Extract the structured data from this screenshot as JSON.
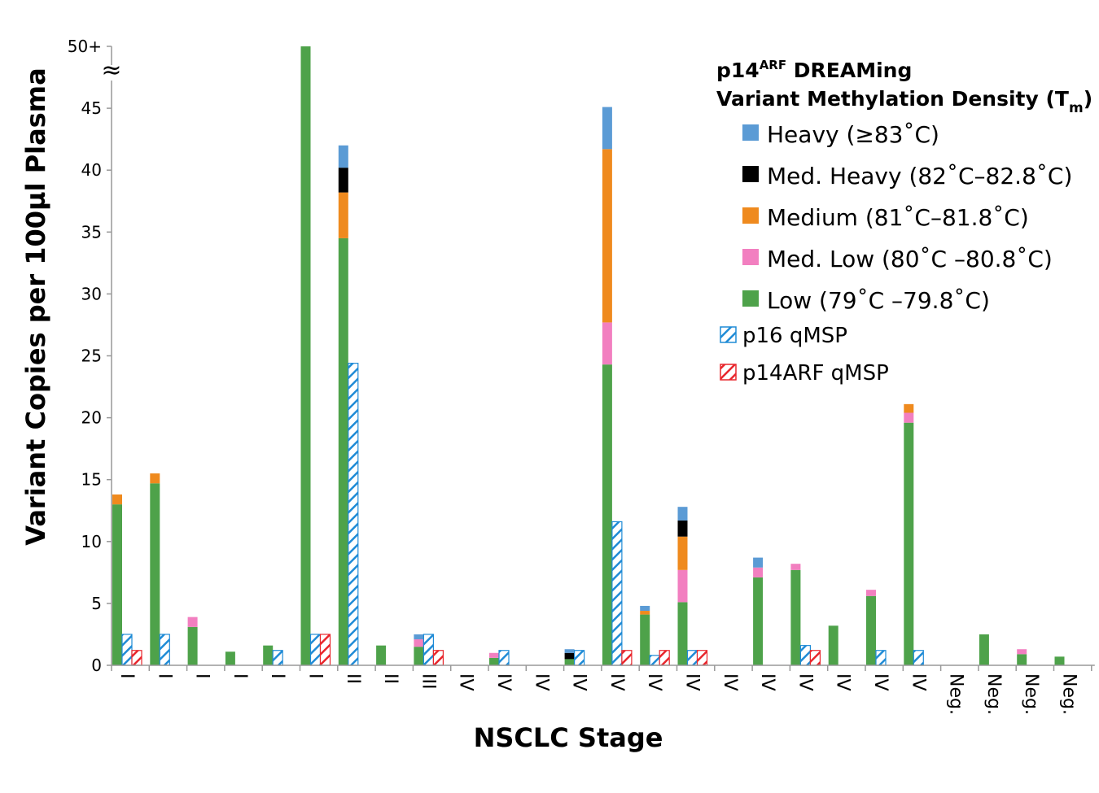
{
  "chart_data": {
    "type": "bar",
    "xlabel": "NSCLC Stage",
    "ylabel": "Variant Copies per 100µl Plasma",
    "ylim": [
      0,
      50
    ],
    "yticks": [
      "0",
      "5",
      "10",
      "15",
      "20",
      "25",
      "30",
      "35",
      "40",
      "45",
      "50+"
    ],
    "axis_break": "≈",
    "categories": [
      "I",
      "I",
      "I",
      "I",
      "I",
      "I",
      "II",
      "II",
      "III",
      "IV",
      "IV",
      "IV",
      "IV",
      "IV",
      "IV",
      "IV",
      "IV",
      "IV",
      "IV",
      "IV",
      "IV",
      "IV",
      "Neg.",
      "Neg.",
      "Neg.",
      "Neg."
    ],
    "legend": {
      "title_line1_main": "p14",
      "title_line1_sup": "ARF",
      "title_line1_rest": " DREAMing",
      "title_line2_main": "Variant Methylation Density (T",
      "title_line2_sub": "m",
      "title_line2_end": ")"
    },
    "stack_series": [
      {
        "name": "Low (79˚C –79.8˚C)",
        "color": "#4ea24a",
        "values": [
          13.0,
          14.7,
          3.1,
          1.1,
          1.6,
          50,
          34.5,
          1.6,
          1.5,
          0,
          0.6,
          0,
          0.5,
          24.3,
          4.1,
          5.1,
          0,
          7.1,
          7.7,
          3.2,
          5.6,
          19.6,
          0,
          2.5,
          0.9,
          0.7
        ]
      },
      {
        "name": "Med. Low (80˚C –80.8˚C)",
        "color": "#f27fc0",
        "values": [
          0,
          0,
          0.8,
          0,
          0,
          0,
          0,
          0,
          0.6,
          0,
          0.4,
          0,
          0,
          3.4,
          0,
          2.6,
          0,
          0.8,
          0.5,
          0,
          0.5,
          0.8,
          0,
          0,
          0.4,
          0
        ]
      },
      {
        "name": "Medium (81˚C–81.8˚C)",
        "color": "#ef8a1e",
        "values": [
          0.8,
          0.8,
          0,
          0,
          0,
          0,
          3.7,
          0,
          0,
          0,
          0,
          0,
          0,
          14.0,
          0.3,
          2.7,
          0,
          0,
          0,
          0,
          0,
          0.7,
          0,
          0,
          0,
          0
        ]
      },
      {
        "name": "Med. Heavy (82˚C–82.8˚C)",
        "color": "#000000",
        "values": [
          0,
          0,
          0,
          0,
          0,
          0,
          2.0,
          0,
          0,
          0,
          0,
          0,
          0.5,
          0,
          0,
          1.3,
          0,
          0,
          0,
          0,
          0,
          0,
          0,
          0,
          0,
          0
        ]
      },
      {
        "name": "Heavy (≥83˚C)",
        "color": "#5b9bd5",
        "values": [
          0,
          0,
          0,
          0,
          0,
          0,
          1.8,
          0,
          0.4,
          0,
          0,
          0,
          0.3,
          3.4,
          0.4,
          1.1,
          0,
          0.8,
          0,
          0,
          0,
          0,
          0,
          0,
          0,
          0
        ]
      }
    ],
    "hatch_series": [
      {
        "name": "p16 qMSP",
        "color": "#1f8bd6",
        "values": [
          2.5,
          2.5,
          0,
          0,
          1.2,
          2.5,
          24.4,
          0,
          2.5,
          0,
          1.2,
          0,
          1.2,
          11.6,
          0.8,
          1.2,
          0,
          0,
          1.6,
          0,
          1.2,
          1.2,
          0,
          0,
          0,
          0
        ]
      },
      {
        "name": "p14ARF qMSP",
        "color": "#e8262c",
        "values": [
          1.2,
          0,
          0,
          0,
          0,
          2.5,
          0,
          0,
          1.2,
          0,
          0,
          0,
          0,
          1.2,
          1.2,
          1.2,
          0,
          0,
          1.2,
          0,
          0,
          0,
          0,
          0,
          0,
          0
        ]
      }
    ]
  }
}
